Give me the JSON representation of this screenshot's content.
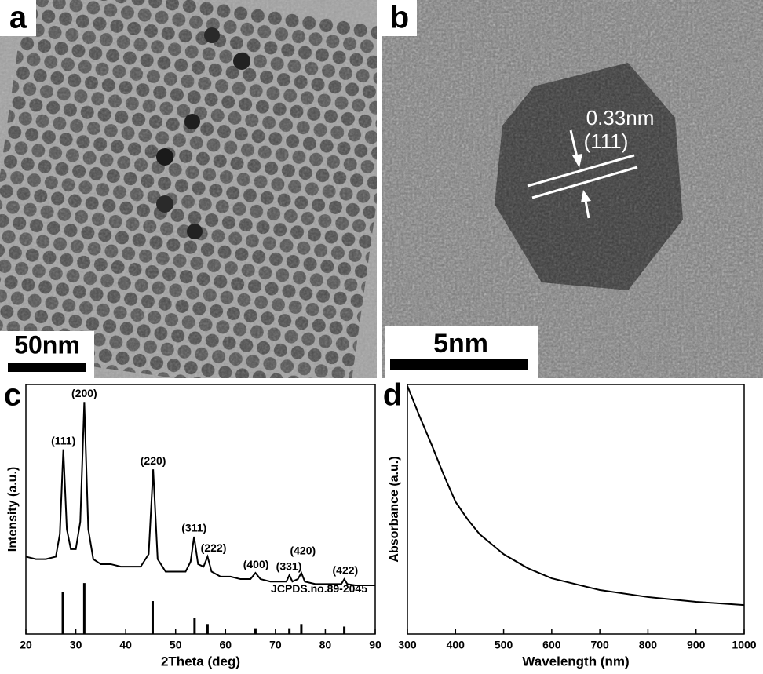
{
  "images": [
    {
      "label": "a",
      "scale_bar": "50nm"
    },
    {
      "label": "b",
      "scale_bar": "5nm",
      "annotations": [
        "0.33nm",
        "(111)"
      ]
    }
  ],
  "chart_data": [
    {
      "type": "line",
      "label": "c",
      "x_label": "2Theta (deg)",
      "y_label": "Intensity (a.u.)",
      "xlim": [
        20,
        90
      ],
      "xticks": [
        20,
        30,
        40,
        50,
        60,
        70,
        80,
        90
      ],
      "ylim": [
        0,
        100
      ],
      "series": [
        {
          "color": "#000000",
          "x": [
            20,
            22,
            24,
            26,
            26.8,
            27.5,
            28.2,
            29,
            30,
            30.9,
            31.7,
            32.5,
            33.5,
            35,
            37,
            39,
            41,
            43,
            44.6,
            45.5,
            46.4,
            48,
            50,
            52,
            53.0,
            53.7,
            54.5,
            55.6,
            56.4,
            57.2,
            59,
            61,
            63,
            65,
            66,
            67,
            69,
            71,
            72.2,
            72.8,
            73.4,
            74.5,
            75.2,
            75.9,
            78,
            80,
            82,
            83.2,
            83.8,
            84.4,
            86,
            88,
            90
          ],
          "values": [
            31,
            30,
            30,
            31,
            40,
            74,
            42,
            34,
            34,
            45,
            93,
            42,
            30,
            28,
            28,
            27,
            27,
            27,
            32,
            66,
            30,
            25,
            25,
            25,
            29,
            39,
            28,
            27,
            31,
            25,
            23,
            23,
            22,
            22,
            24.5,
            22,
            21,
            21,
            21,
            23.6,
            21,
            22,
            24.5,
            21,
            20,
            20,
            20,
            20,
            22,
            20,
            19.5,
            19.5,
            19.5
          ]
        },
        {
          "name": "JCPDS.no.89-2045",
          "color": "#000000",
          "mark": "stick",
          "x": [
            27.4,
            31.7,
            45.4,
            53.8,
            56.4,
            66,
            72.8,
            75.2,
            83.8
          ],
          "values": [
            16.7,
            20.4,
            13.2,
            6.3,
            4,
            2,
            2,
            4,
            3
          ]
        }
      ],
      "annotations": [
        {
          "text": "(111)",
          "x": 27.5,
          "y": 74
        },
        {
          "text": "(200)",
          "x": 31.7,
          "y": 93
        },
        {
          "text": "(220)",
          "x": 45.5,
          "y": 66
        },
        {
          "text": "(311)",
          "x": 53.7,
          "y": 39
        },
        {
          "text": "(222)",
          "x": 57.6,
          "y": 31
        },
        {
          "text": "(400)",
          "x": 66.1,
          "y": 24.5
        },
        {
          "text": "(331)",
          "x": 72.7,
          "y": 23.6
        },
        {
          "text": "(420)",
          "x": 75.5,
          "y": 30
        },
        {
          "text": "(422)",
          "x": 84,
          "y": 22
        }
      ]
    },
    {
      "type": "line",
      "label": "d",
      "x_label": "Wavelength (nm)",
      "y_label": "Absorbance (a.u.)",
      "xlim": [
        300,
        1000
      ],
      "xticks": [
        300,
        400,
        500,
        600,
        700,
        800,
        900,
        1000
      ],
      "ylim": [
        0,
        100
      ],
      "series": [
        {
          "color": "#000000",
          "x": [
            300,
            325,
            350,
            375,
            400,
            425,
            450,
            500,
            550,
            600,
            700,
            800,
            900,
            1000
          ],
          "values": [
            99.4,
            87.4,
            76,
            64,
            53,
            46,
            40,
            32,
            26.4,
            22.3,
            17.6,
            14.8,
            12.9,
            11.6
          ]
        }
      ]
    }
  ]
}
